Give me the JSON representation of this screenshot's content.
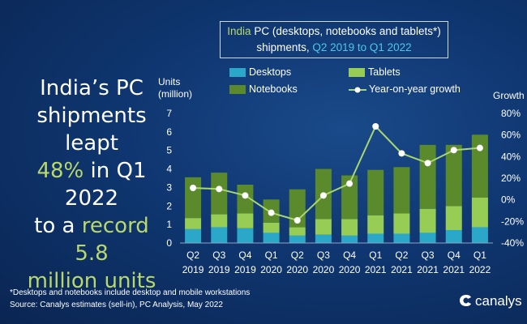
{
  "headline": {
    "line1": "India’s PC",
    "line2": "shipments leapt",
    "line3_highlight": "48%",
    "line3_rest": " in Q1 2022",
    "line4_prefix": "to a ",
    "line4_highlight": "record 5.8",
    "line5_highlight": "million units"
  },
  "title": {
    "line1_highlight": "India",
    "line1_rest": " PC (desktops, notebooks and tablets*)",
    "line2_prefix": "shipments, ",
    "line2_highlight": "Q2 2019 to Q1 2022"
  },
  "axes": {
    "left_title_1": "Units",
    "left_title_2": "(million)",
    "right_title": "Growth"
  },
  "legend": {
    "desktops": "Desktops",
    "tablets": "Tablets",
    "notebooks": "Notebooks",
    "growth": "Year-on-year growth"
  },
  "footnote": {
    "line1": "*Desktops and notebooks include desktop and mobile workstations",
    "line2": "Source: Canalys estimates (sell-in), PC Analysis, May 2022"
  },
  "brand": "canalys",
  "colors": {
    "desktops": "#2aa7c9",
    "tablets": "#97cc55",
    "notebooks": "#5a8a2c",
    "growth_line": "#a9d670",
    "accent": "#b8d86a",
    "title_accent": "#4cc7e6"
  },
  "chart_data": {
    "type": "bar",
    "stacked": true,
    "categories": [
      "Q2 2019",
      "Q3 2019",
      "Q4 2019",
      "Q1 2020",
      "Q2 2020",
      "Q3 2020",
      "Q4 2020",
      "Q1 2021",
      "Q2 2021",
      "Q3 2021",
      "Q4 2021",
      "Q1 2022"
    ],
    "category_labels": [
      [
        "Q2",
        "2019"
      ],
      [
        "Q3",
        "2019"
      ],
      [
        "Q4",
        "2019"
      ],
      [
        "Q1",
        "2020"
      ],
      [
        "Q2",
        "2020"
      ],
      [
        "Q3",
        "2020"
      ],
      [
        "Q4",
        "2020"
      ],
      [
        "Q1",
        "2021"
      ],
      [
        "Q2",
        "2021"
      ],
      [
        "Q3",
        "2021"
      ],
      [
        "Q4",
        "2021"
      ],
      [
        "Q1",
        "2022"
      ]
    ],
    "series": [
      {
        "name": "Desktops",
        "values": [
          0.75,
          0.85,
          0.8,
          0.55,
          0.4,
          0.45,
          0.4,
          0.5,
          0.5,
          0.55,
          0.7,
          0.85
        ]
      },
      {
        "name": "Tablets",
        "values": [
          0.6,
          0.7,
          0.8,
          0.55,
          0.45,
          0.85,
          0.9,
          1.0,
          1.1,
          1.3,
          1.3,
          1.6
        ]
      },
      {
        "name": "Notebooks",
        "values": [
          2.2,
          2.25,
          1.55,
          1.25,
          2.05,
          2.7,
          2.35,
          2.45,
          2.5,
          3.45,
          3.3,
          3.4
        ]
      }
    ],
    "line_series": {
      "name": "Year-on-year growth",
      "axis": "right",
      "values": [
        11,
        10,
        4,
        -12,
        -19,
        4,
        15,
        68,
        43,
        34,
        46,
        48
      ]
    },
    "ylim": [
      0,
      7
    ],
    "yticks": [
      "0",
      "1",
      "2",
      "3",
      "4",
      "5",
      "6",
      "7"
    ],
    "y2lim": [
      -40,
      80
    ],
    "y2ticks": [
      "-40%",
      "-20%",
      "0%",
      "20%",
      "40%",
      "60%",
      "80%"
    ],
    "ylabel": "Units (million)",
    "y2label": "Growth",
    "legend_position": "top",
    "grid": false
  }
}
